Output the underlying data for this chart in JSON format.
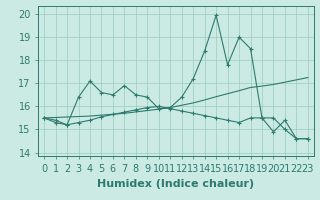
{
  "x": [
    0,
    1,
    2,
    3,
    4,
    5,
    6,
    7,
    8,
    9,
    10,
    11,
    12,
    13,
    14,
    15,
    16,
    17,
    18,
    19,
    20,
    21,
    22,
    23
  ],
  "line1": [
    15.5,
    15.4,
    15.2,
    16.4,
    17.1,
    16.6,
    16.5,
    16.9,
    16.5,
    16.4,
    15.9,
    15.95,
    16.4,
    17.2,
    18.4,
    19.95,
    17.8,
    19.0,
    18.5,
    15.5,
    14.9,
    15.4,
    14.6,
    14.6
  ],
  "line2": [
    15.5,
    15.3,
    15.2,
    15.3,
    15.4,
    15.55,
    15.65,
    15.75,
    15.85,
    15.95,
    16.0,
    15.9,
    15.8,
    15.7,
    15.6,
    15.5,
    15.4,
    15.3,
    15.5,
    15.5,
    15.5,
    15.0,
    14.6,
    14.6
  ],
  "line3": [
    15.5,
    15.52,
    15.54,
    15.56,
    15.58,
    15.62,
    15.66,
    15.7,
    15.76,
    15.82,
    15.88,
    15.95,
    16.05,
    16.15,
    16.28,
    16.42,
    16.55,
    16.68,
    16.82,
    16.88,
    16.95,
    17.05,
    17.15,
    17.25
  ],
  "bg_color": "#cceae4",
  "line_color": "#2d7a6e",
  "grid_color": "#99ccbb",
  "xlabel": "Humidex (Indice chaleur)",
  "ylabel_ticks": [
    14,
    15,
    16,
    17,
    18,
    19,
    20
  ],
  "xlim": [
    -0.5,
    23.5
  ],
  "ylim": [
    13.85,
    20.35
  ],
  "xlabel_fontsize": 8,
  "tick_fontsize": 7
}
